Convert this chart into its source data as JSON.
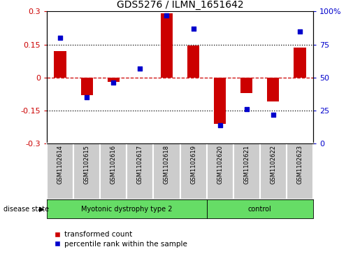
{
  "title": "GDS5276 / ILMN_1651642",
  "samples": [
    "GSM1102614",
    "GSM1102615",
    "GSM1102616",
    "GSM1102617",
    "GSM1102618",
    "GSM1102619",
    "GSM1102620",
    "GSM1102621",
    "GSM1102622",
    "GSM1102623"
  ],
  "transformed_count": [
    0.12,
    -0.08,
    -0.02,
    0.0,
    0.29,
    0.145,
    -0.21,
    -0.07,
    -0.11,
    0.135
  ],
  "percentile_rank": [
    80,
    35,
    46,
    57,
    97,
    87,
    14,
    26,
    22,
    85
  ],
  "ylim_left": [
    -0.3,
    0.3
  ],
  "ylim_right": [
    0,
    100
  ],
  "yticks_left": [
    -0.3,
    -0.15,
    0.0,
    0.15,
    0.3
  ],
  "yticks_right": [
    0,
    25,
    50,
    75,
    100
  ],
  "hlines": [
    0.15,
    -0.15
  ],
  "red_hline": 0.0,
  "bar_color": "#cc0000",
  "dot_color": "#0000cc",
  "left_tick_color": "#cc0000",
  "right_tick_color": "#0000cc",
  "group1_label": "Myotonic dystrophy type 2",
  "group2_label": "control",
  "group1_color": "#66dd66",
  "group2_color": "#66dd66",
  "group1_count": 6,
  "group2_count": 4,
  "disease_state_label": "disease state",
  "legend_bar_label": "transformed count",
  "legend_dot_label": "percentile rank within the sample",
  "xlabel_bg": "#cccccc",
  "plot_bg": "#ffffff",
  "bar_width": 0.45
}
